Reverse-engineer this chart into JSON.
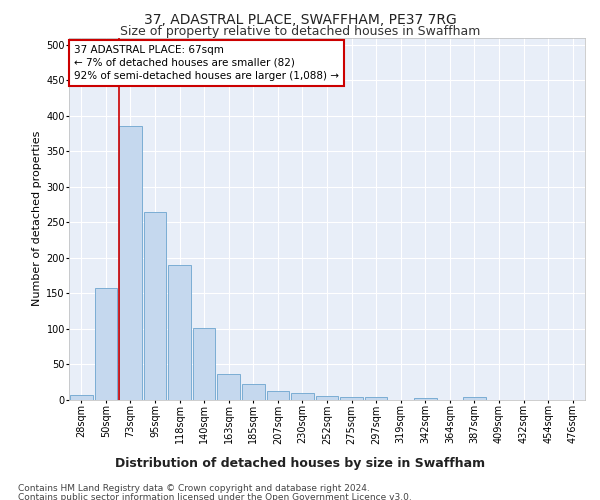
{
  "title": "37, ADASTRAL PLACE, SWAFFHAM, PE37 7RG",
  "subtitle": "Size of property relative to detached houses in Swaffham",
  "xlabel": "Distribution of detached houses by size in Swaffham",
  "ylabel": "Number of detached properties",
  "categories": [
    "28sqm",
    "50sqm",
    "73sqm",
    "95sqm",
    "118sqm",
    "140sqm",
    "163sqm",
    "185sqm",
    "207sqm",
    "230sqm",
    "252sqm",
    "275sqm",
    "297sqm",
    "319sqm",
    "342sqm",
    "364sqm",
    "387sqm",
    "409sqm",
    "432sqm",
    "454sqm",
    "476sqm"
  ],
  "values": [
    7,
    157,
    385,
    265,
    190,
    102,
    36,
    22,
    13,
    10,
    6,
    4,
    4,
    0,
    3,
    0,
    4,
    0,
    0,
    0,
    0
  ],
  "bar_color": "#c5d8ee",
  "bar_edge_color": "#7badd4",
  "vline_color": "#cc0000",
  "vline_x": 2.0,
  "annotation_text": "37 ADASTRAL PLACE: 67sqm\n← 7% of detached houses are smaller (82)\n92% of semi-detached houses are larger (1,088) →",
  "annotation_box_facecolor": "#ffffff",
  "annotation_box_edgecolor": "#cc0000",
  "ylim": [
    0,
    510
  ],
  "yticks": [
    0,
    50,
    100,
    150,
    200,
    250,
    300,
    350,
    400,
    450,
    500
  ],
  "footer_line1": "Contains HM Land Registry data © Crown copyright and database right 2024.",
  "footer_line2": "Contains public sector information licensed under the Open Government Licence v3.0.",
  "background_color": "#e8eef8",
  "grid_color": "#ffffff",
  "title_fontsize": 10,
  "subtitle_fontsize": 9,
  "xlabel_fontsize": 9,
  "ylabel_fontsize": 8,
  "tick_fontsize": 7,
  "annotation_fontsize": 7.5,
  "footer_fontsize": 6.5
}
